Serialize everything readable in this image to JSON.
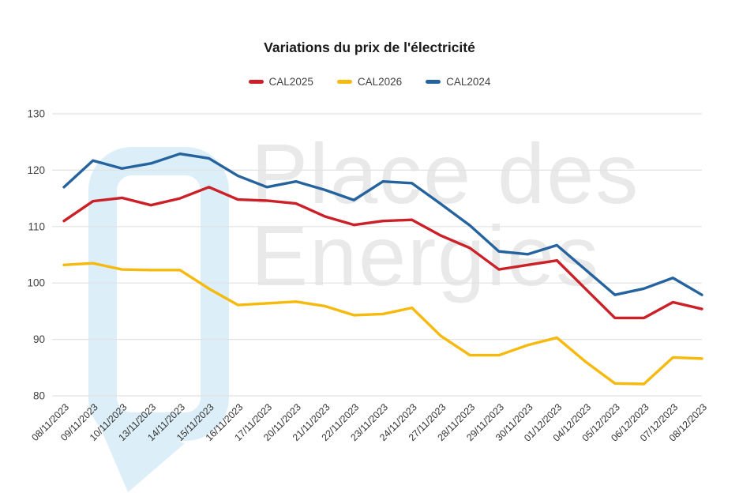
{
  "watermark": {
    "line1": "Place des",
    "line2": "Energies",
    "text_color": "#e9e9e9",
    "logo_color": "#dceef7"
  },
  "chart_data": {
    "type": "line",
    "title": "Variations du prix de l'électricité",
    "xlabel": "",
    "ylabel": "",
    "categories": [
      "08/11/2023",
      "09/11/2023",
      "10/11/2023",
      "13/11/2023",
      "14/11/2023",
      "15/11/2023",
      "16/11/2023",
      "17/11/2023",
      "20/11/2023",
      "21/11/2023",
      "22/11/2023",
      "23/11/2023",
      "24/11/2023",
      "27/11/2023",
      "28/11/2023",
      "29/11/2023",
      "30/11/2023",
      "01/12/2023",
      "04/12/2023",
      "05/12/2023",
      "06/12/2023",
      "07/12/2023",
      "08/12/2023"
    ],
    "series": [
      {
        "name": "CAL2025",
        "color": "#cb2027",
        "values": [
          111.0,
          114.5,
          115.1,
          113.8,
          115.0,
          117.0,
          114.8,
          114.6,
          114.1,
          111.8,
          110.3,
          111.0,
          111.2,
          108.4,
          106.2,
          102.4,
          103.2,
          104.0,
          98.9,
          93.8,
          93.8,
          96.6,
          95.4
        ]
      },
      {
        "name": "CAL2026",
        "color": "#f6b90d",
        "values": [
          103.2,
          103.5,
          102.4,
          102.3,
          102.3,
          99.0,
          96.1,
          96.4,
          96.7,
          95.9,
          94.3,
          94.5,
          95.6,
          90.6,
          87.2,
          87.2,
          89.0,
          90.3,
          86.0,
          82.2,
          82.1,
          86.8,
          86.6
        ]
      },
      {
        "name": "CAL2024",
        "color": "#25639f",
        "values": [
          117.0,
          121.7,
          120.3,
          121.2,
          122.9,
          122.1,
          119.0,
          117.0,
          118.0,
          116.5,
          114.7,
          118.0,
          117.7,
          114.0,
          110.2,
          105.6,
          105.1,
          106.7,
          102.3,
          97.9,
          99.0,
          100.9,
          97.9
        ]
      }
    ],
    "ylim": [
      80,
      130
    ],
    "yticks": [
      80,
      90,
      100,
      110,
      120,
      130
    ],
    "grid": "horizontal",
    "grid_color": "#e2e2e2",
    "tick_label_color": "#424242",
    "x_tick_label_color": "#333333",
    "legend_position": "top"
  }
}
